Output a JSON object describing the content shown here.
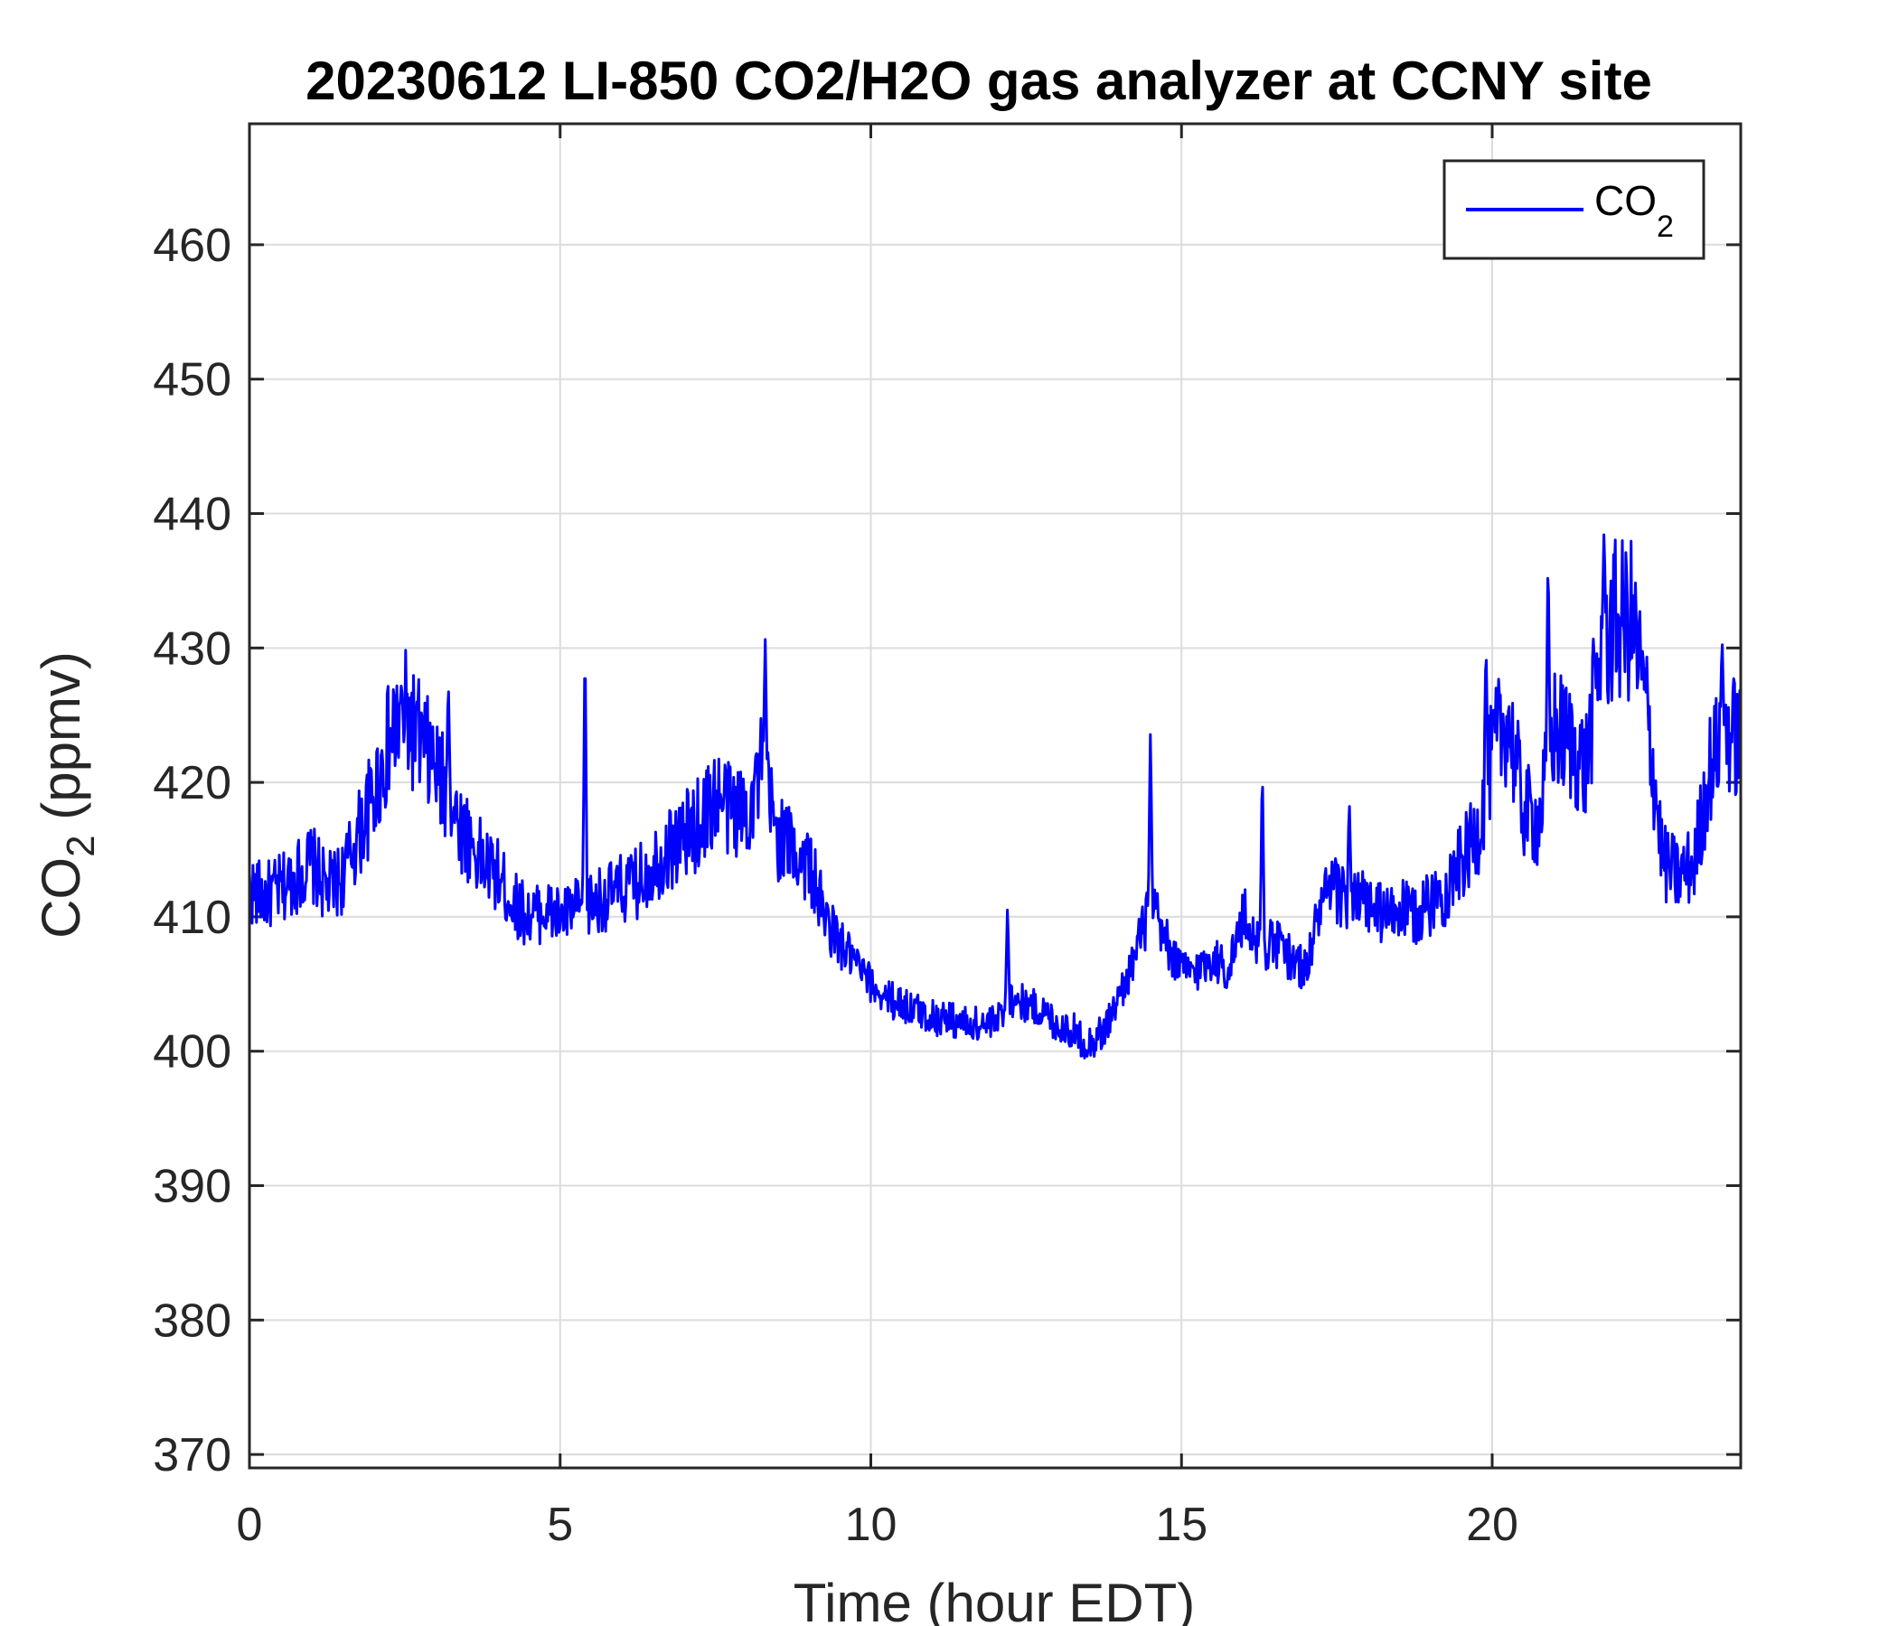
{
  "chart_data": {
    "type": "line",
    "title": "20230612 LI-850 CO2/H2O gas analyzer at CCNY site",
    "xlabel": "Time (hour EDT)",
    "ylabel": {
      "main": "CO",
      "sub": "2",
      "unit": " (ppmv)"
    },
    "xlim": [
      0,
      24
    ],
    "ylim": [
      369,
      469
    ],
    "xticks": [
      0,
      5,
      10,
      15,
      20
    ],
    "yticks": [
      370,
      380,
      390,
      400,
      410,
      420,
      430,
      440,
      450,
      460
    ],
    "grid": true,
    "legend": {
      "position": "top-right",
      "entries": [
        {
          "main": "CO",
          "sub": "2"
        }
      ]
    },
    "series": [
      {
        "name": "CO2",
        "color": "#0000ff",
        "x": [
          0,
          0.25,
          0.5,
          0.75,
          1.0,
          1.25,
          1.5,
          1.75,
          2.0,
          2.25,
          2.5,
          2.75,
          3.0,
          3.25,
          3.5,
          3.75,
          4.0,
          4.25,
          4.5,
          4.75,
          5.0,
          5.25,
          5.5,
          5.75,
          6.0,
          6.25,
          6.5,
          6.75,
          7.0,
          7.25,
          7.5,
          7.75,
          8.0,
          8.25,
          8.5,
          8.75,
          9.0,
          9.25,
          9.5,
          9.75,
          10.0,
          10.25,
          10.5,
          10.75,
          11.0,
          11.25,
          11.5,
          11.75,
          12.0,
          12.25,
          12.5,
          12.75,
          13.0,
          13.25,
          13.5,
          13.75,
          14.0,
          14.25,
          14.5,
          14.75,
          15.0,
          15.25,
          15.5,
          15.75,
          16.0,
          16.25,
          16.5,
          16.75,
          17.0,
          17.25,
          17.5,
          17.75,
          18.0,
          18.25,
          18.5,
          18.75,
          19.0,
          19.25,
          19.5,
          19.75,
          20.0,
          20.25,
          20.5,
          20.75,
          21.0,
          21.25,
          21.5,
          21.75,
          22.0,
          22.25,
          22.5,
          22.75,
          23.0,
          23.25,
          23.5,
          23.75,
          24.0
        ],
        "y": [
          412,
          411.5,
          412,
          413,
          414,
          412,
          413,
          416,
          419,
          423,
          425,
          423,
          421,
          418,
          416,
          414,
          413,
          411,
          410,
          410.5,
          410,
          410.5,
          411,
          411.5,
          412,
          412.5,
          414,
          415,
          416,
          417,
          419,
          418,
          418,
          421,
          416,
          415,
          414,
          410,
          408,
          406.5,
          405,
          404,
          403.5,
          403,
          402.5,
          402.5,
          402,
          402,
          402,
          404,
          403.5,
          403,
          402,
          401.5,
          400.5,
          401.5,
          404,
          407,
          411,
          408,
          406,
          406,
          407,
          406,
          410,
          408,
          408,
          407,
          406,
          411,
          412,
          411,
          411,
          410,
          410.5,
          410,
          411,
          412,
          414,
          416,
          422,
          425,
          418,
          417,
          424,
          423,
          421,
          430,
          432,
          432,
          425,
          414,
          413,
          414,
          421,
          424,
          423
        ],
        "peaks": [
          {
            "x": 3.2,
            "y": 428
          },
          {
            "x": 5.4,
            "y": 432
          },
          {
            "x": 8.3,
            "y": 431
          },
          {
            "x": 12.2,
            "y": 411
          },
          {
            "x": 14.5,
            "y": 424
          },
          {
            "x": 16.3,
            "y": 422
          },
          {
            "x": 17.7,
            "y": 419
          },
          {
            "x": 19.9,
            "y": 431
          },
          {
            "x": 20.9,
            "y": 438
          },
          {
            "x": 21.8,
            "y": 439
          },
          {
            "x": 23.7,
            "y": 431
          }
        ]
      }
    ]
  }
}
